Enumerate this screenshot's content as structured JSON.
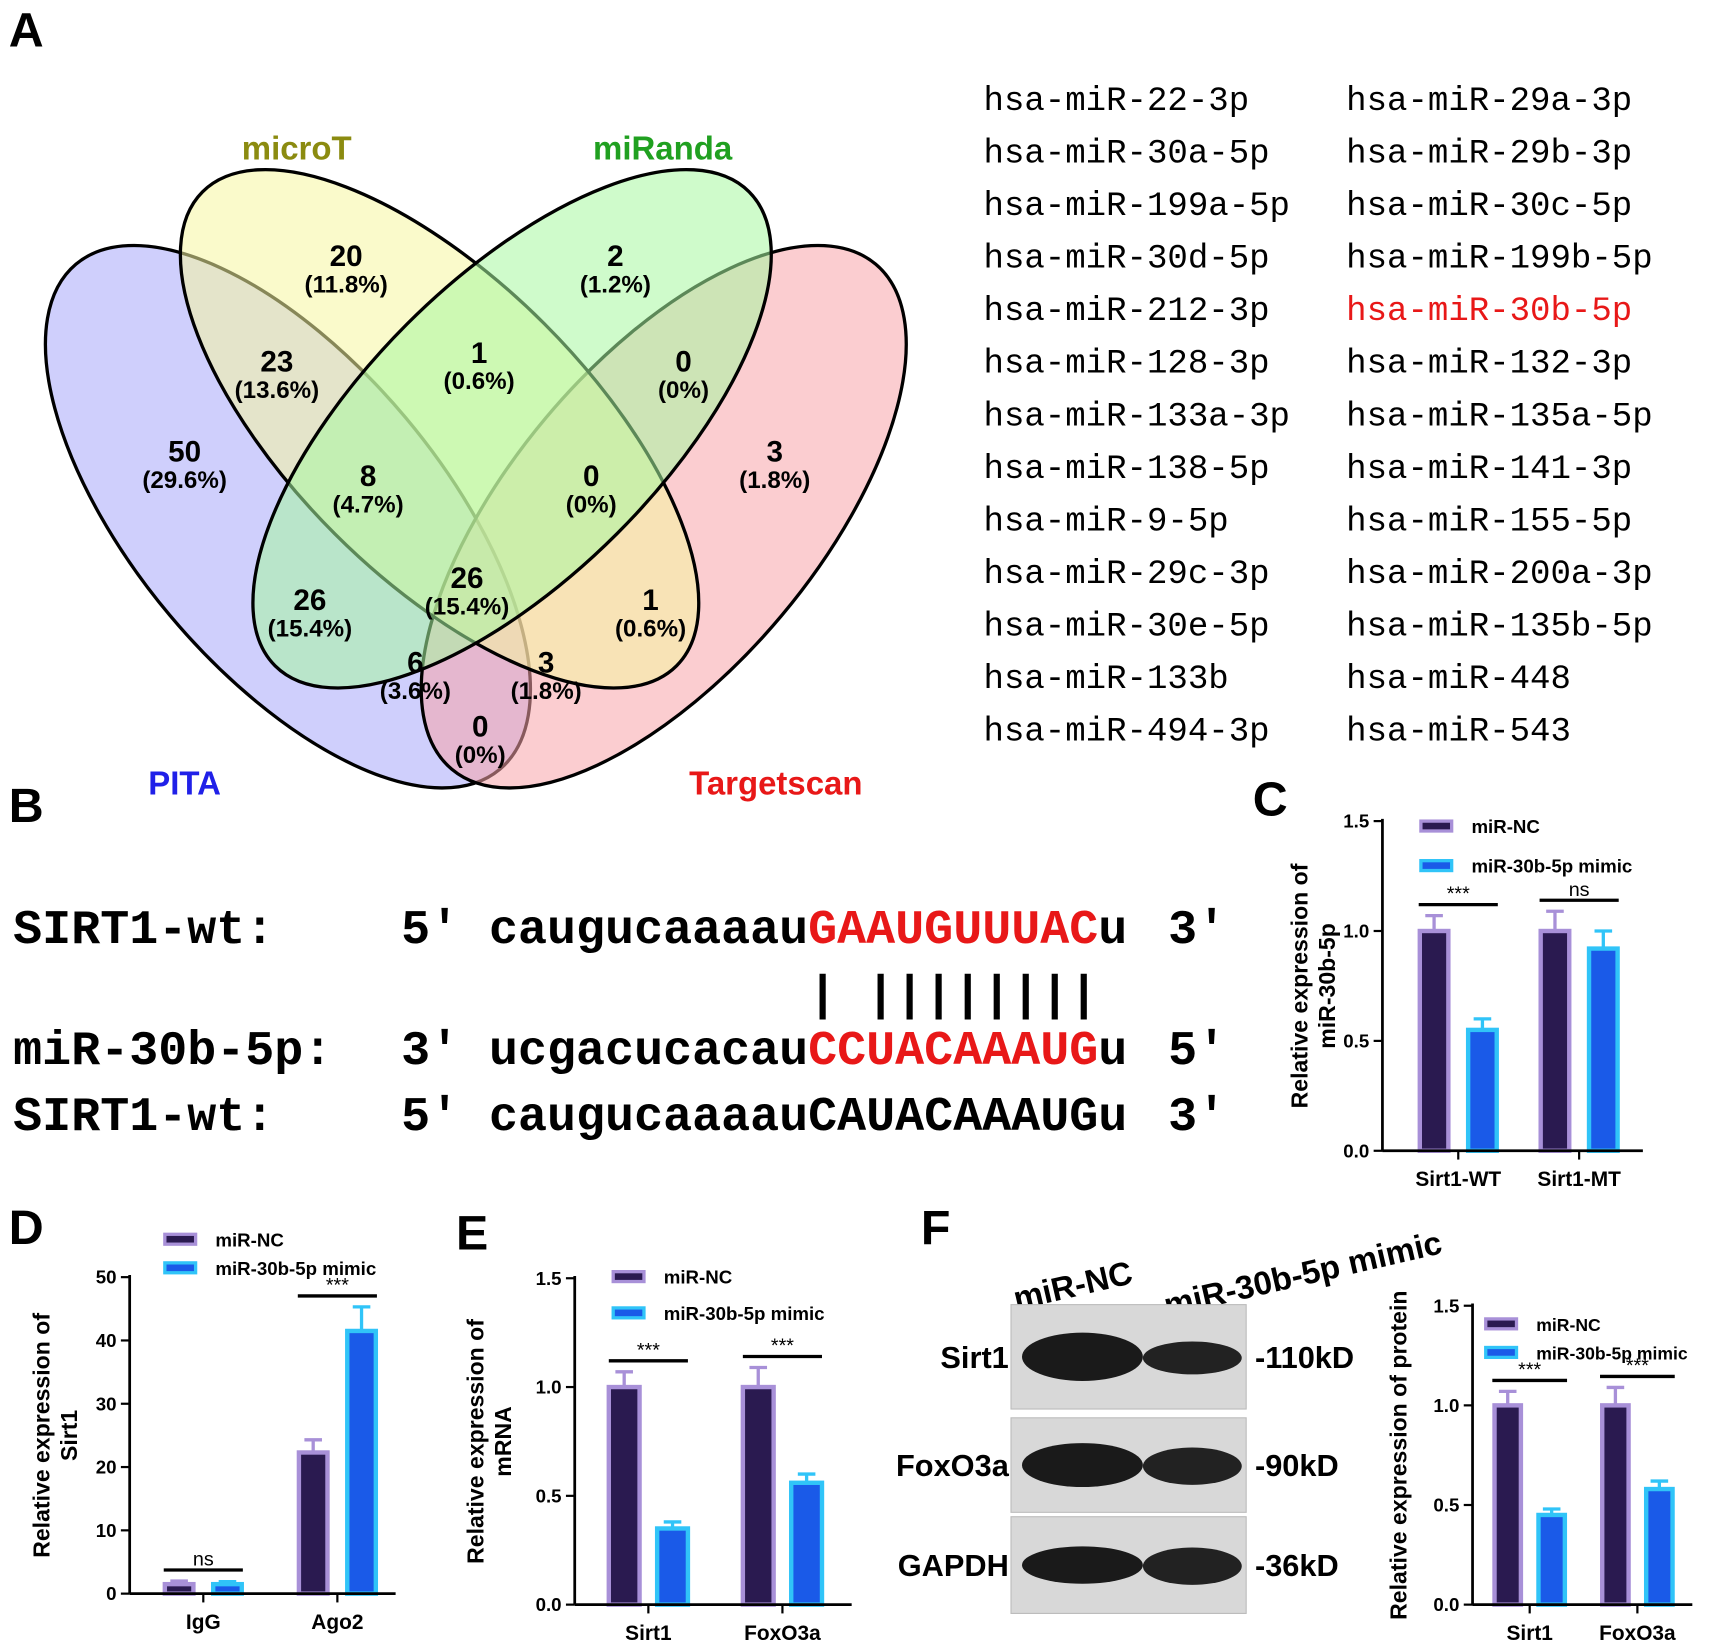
{
  "panel_labels": [
    "A",
    "B",
    "C",
    "D",
    "E",
    "F"
  ],
  "venn": {
    "sets": [
      {
        "name": "microT",
        "color": "#f6f6a0",
        "label_color": "#8b8b10"
      },
      {
        "name": "miRanda",
        "color": "#a8f8a0",
        "label_color": "#20a020"
      },
      {
        "name": "PITA",
        "color": "#a8a8fa",
        "label_color": "#2020e8"
      },
      {
        "name": "Targetscan",
        "color": "#f8a4aa",
        "label_color": "#e81818"
      }
    ],
    "regions": [
      {
        "count": 20,
        "percent": "(11.8%)"
      },
      {
        "count": 2,
        "percent": "(1.2%)"
      },
      {
        "count": 23,
        "percent": "(13.6%)"
      },
      {
        "count": 1,
        "percent": "(0.6%)"
      },
      {
        "count": 0,
        "percent": "(0%)"
      },
      {
        "count": 50,
        "percent": "(29.6%)"
      },
      {
        "count": 8,
        "percent": "(4.7%)"
      },
      {
        "count": 0,
        "percent": "(0%)"
      },
      {
        "count": 3,
        "percent": "(1.8%)"
      },
      {
        "count": 26,
        "percent": "(15.4%)"
      },
      {
        "count": 26,
        "percent": "(15.4%)"
      },
      {
        "count": 1,
        "percent": "(0.6%)"
      },
      {
        "count": 6,
        "percent": "(3.6%)"
      },
      {
        "count": 3,
        "percent": "(1.8%)"
      },
      {
        "count": 0,
        "percent": "(0%)"
      }
    ]
  },
  "mirna_list": {
    "columns": [
      [
        "hsa-miR-22-3p",
        "hsa-miR-30a-5p",
        "hsa-miR-199a-5p",
        "hsa-miR-30d-5p",
        "hsa-miR-212-3p",
        "hsa-miR-128-3p",
        "hsa-miR-133a-3p",
        "hsa-miR-138-5p",
        "hsa-miR-9-5p",
        "hsa-miR-29c-3p",
        "hsa-miR-30e-5p",
        "hsa-miR-133b",
        "hsa-miR-494-3p"
      ],
      [
        "hsa-miR-29a-3p",
        "hsa-miR-29b-3p",
        "hsa-miR-30c-5p",
        "hsa-miR-199b-5p",
        "hsa-miR-30b-5p",
        "hsa-miR-132-3p",
        "hsa-miR-135a-5p",
        "hsa-miR-141-3p",
        "hsa-miR-155-5p",
        "hsa-miR-200a-3p",
        "hsa-miR-135b-5p",
        "hsa-miR-448",
        "hsa-miR-543"
      ]
    ],
    "highlight": {
      "column": 1,
      "row": 4,
      "color": "#e81818"
    }
  },
  "sequence": {
    "rows": [
      {
        "name": "SIRT1-wt:",
        "end5": "5'",
        "seq": [
          {
            "text": "caugucaaaau",
            "color": "#000000"
          },
          {
            "text": "GAAUGUUUAC",
            "color": "#e81818"
          },
          {
            "text": "u",
            "color": "#000000"
          }
        ],
        "end3": "3'"
      },
      {
        "name": "miR-30b-5p:",
        "end5": "3'",
        "seq": [
          {
            "text": "ucgacucacau",
            "color": "#000000"
          },
          {
            "text": "CCUACAAAUG",
            "color": "#e81818"
          },
          {
            "text": "u",
            "color": "#000000"
          }
        ],
        "end3": "5′"
      },
      {
        "name": "SIRT1-wt:",
        "end5": "5'",
        "seq": [
          {
            "text": "caugucaaaauCAUACAAAUGu",
            "color": "#000000"
          }
        ],
        "end3": "3'"
      }
    ],
    "pairing": "| ||||||||"
  },
  "blot": {
    "lanes": [
      "miR-NC",
      "miR-30b-5p mimic"
    ],
    "rows": [
      {
        "label": "Sirt1",
        "size": "-110kD"
      },
      {
        "label": "FoxO3a",
        "size": "-90kD"
      },
      {
        "label": "GAPDH",
        "size": "-36kD"
      }
    ]
  },
  "chart_data": [
    {
      "type": "bar",
      "categories": [
        "Sirt1-WT",
        "Sirt1-MT"
      ],
      "series": [
        {
          "name": "miR-NC",
          "color": "#2a1a50",
          "edge_color": "#a890d8",
          "values": [
            1.0,
            1.0
          ],
          "errors": [
            0.07,
            0.09
          ]
        },
        {
          "name": "miR-30b-5p mimic",
          "color": "#1a5ae8",
          "edge_color": "#30c4f8",
          "values": [
            0.55,
            0.92
          ],
          "errors": [
            0.05,
            0.08
          ]
        }
      ],
      "ylim": [
        0,
        1.5
      ],
      "yticks": [
        {
          "value": 0,
          "label": "0.0"
        },
        {
          "value": 0.5,
          "label": "0.5"
        },
        {
          "value": 1,
          "label": "1.0"
        },
        {
          "value": 1.5,
          "label": "1.5"
        }
      ],
      "ylabel": [
        "Relative expression of",
        "miR-30b-5p"
      ],
      "annotations": [
        {
          "text": "***",
          "category": 0
        },
        {
          "text": "ns",
          "category": 1
        }
      ]
    },
    {
      "type": "bar",
      "categories": [
        "IgG",
        "Ago2"
      ],
      "series": [
        {
          "name": "miR-NC",
          "color": "#2a1a50",
          "edge_color": "#a890d8",
          "values": [
            1.5,
            22.3
          ],
          "errors": [
            0.5,
            2.0
          ]
        },
        {
          "name": "miR-30b-5p mimic",
          "color": "#1a5ae8",
          "edge_color": "#30c4f8",
          "values": [
            1.5,
            41.5
          ],
          "errors": [
            0.4,
            3.8
          ]
        }
      ],
      "ylim": [
        0,
        50
      ],
      "yticks": [
        0,
        10,
        20,
        30,
        40,
        50
      ],
      "ylabel": [
        "Relative expression of",
        "Sirt1"
      ],
      "annotations": [
        {
          "text": "ns",
          "category": 0
        },
        {
          "text": "***",
          "category": 1
        }
      ]
    },
    {
      "type": "bar",
      "categories": [
        "Sirt1",
        "FoxO3a"
      ],
      "series": [
        {
          "name": "miR-NC",
          "color": "#2a1a50",
          "edge_color": "#a890d8",
          "values": [
            1.0,
            1.0
          ],
          "errors": [
            0.07,
            0.09
          ]
        },
        {
          "name": "miR-30b-5p mimic",
          "color": "#1a5ae8",
          "edge_color": "#30c4f8",
          "values": [
            0.35,
            0.56
          ],
          "errors": [
            0.03,
            0.04
          ]
        }
      ],
      "ylim": [
        0,
        1.5
      ],
      "yticks": [
        {
          "value": 0,
          "label": "0.0"
        },
        {
          "value": 0.5,
          "label": "0.5"
        },
        {
          "value": 1,
          "label": "1.0"
        },
        {
          "value": 1.5,
          "label": "1.5"
        }
      ],
      "ylabel": [
        "Relative expression of",
        "mRNA"
      ],
      "annotations": [
        {
          "text": "***",
          "category": 0
        },
        {
          "text": "***",
          "category": 1
        }
      ]
    },
    {
      "type": "bar",
      "categories": [
        "Sirt1",
        "FoxO3a"
      ],
      "series": [
        {
          "name": "miR-NC",
          "color": "#2a1a50",
          "edge_color": "#a890d8",
          "values": [
            1.0,
            1.0
          ],
          "errors": [
            0.07,
            0.09
          ]
        },
        {
          "name": "miR-30b-5p mimic",
          "color": "#1a5ae8",
          "edge_color": "#30c4f8",
          "values": [
            0.45,
            0.58
          ],
          "errors": [
            0.03,
            0.04
          ]
        }
      ],
      "ylim": [
        0,
        1.5
      ],
      "yticks": [
        {
          "value": 0,
          "label": "0.0"
        },
        {
          "value": 0.5,
          "label": "0.5"
        },
        {
          "value": 1,
          "label": "1.0"
        },
        {
          "value": 1.5,
          "label": "1.5"
        }
      ],
      "ylabel": [
        "Relative expression of protein"
      ],
      "annotations": [
        {
          "text": "***",
          "category": 0
        },
        {
          "text": "***",
          "category": 1
        }
      ]
    }
  ]
}
